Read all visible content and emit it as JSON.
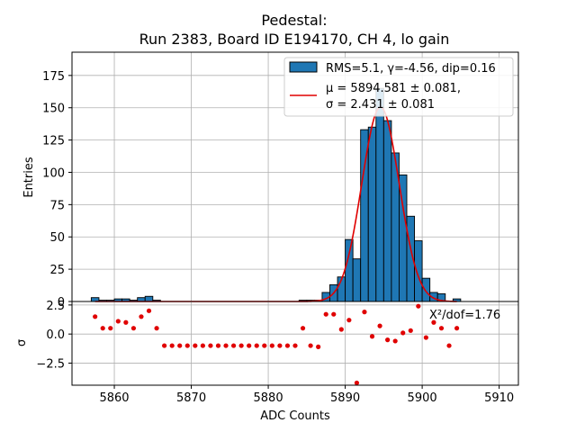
{
  "chart_data": {
    "type": "bar",
    "title_line1": "Pedestal:",
    "title_line2": "Run 2383, Board ID E194170, CH 4, lo gain",
    "xlabel": "ADC Counts",
    "xlim": [
      5854.5,
      5912.5
    ],
    "xticks": [
      5860,
      5870,
      5880,
      5890,
      5900,
      5910
    ],
    "grid": true,
    "legend": {
      "placement": "top-right",
      "hist_label": "RMS=5.1, γ=-4.56, dip=0.16",
      "fit_mu_label": "μ = 5894.581 ± 0.081,",
      "fit_sigma_label": "σ = 2.431 ± 0.081",
      "hist_color": "#1f77b4",
      "fit_color": "#e00000"
    },
    "top_panel": {
      "ylabel": "Entries",
      "ylim": [
        0,
        193
      ],
      "yticks": [
        0,
        25,
        50,
        75,
        100,
        125,
        150,
        175
      ],
      "bin_width": 1,
      "bin_left_edges": [
        5857,
        5858,
        5859,
        5860,
        5861,
        5862,
        5863,
        5864,
        5865,
        5866,
        5867,
        5868,
        5869,
        5870,
        5871,
        5872,
        5873,
        5874,
        5875,
        5876,
        5877,
        5878,
        5879,
        5880,
        5881,
        5882,
        5883,
        5884,
        5885,
        5886,
        5887,
        5888,
        5889,
        5890,
        5891,
        5892,
        5893,
        5894,
        5895,
        5896,
        5897,
        5898,
        5899,
        5900,
        5901,
        5902,
        5903,
        5904
      ],
      "counts": [
        3,
        1,
        1,
        2,
        2,
        1,
        3,
        4,
        1,
        0,
        0,
        0,
        0,
        0,
        0,
        0,
        0,
        0,
        0,
        0,
        0,
        0,
        0,
        0,
        0,
        0,
        0,
        1,
        1,
        1,
        7,
        13,
        19,
        48,
        33,
        133,
        135,
        165,
        140,
        115,
        98,
        66,
        47,
        18,
        7,
        6,
        0,
        2
      ],
      "fit": {
        "function": "gaussian",
        "mu": 5894.581,
        "sigma": 2.431,
        "amplitude": 150.5
      }
    },
    "residual_panel": {
      "ylabel": "σ",
      "ylim": [
        -4.4,
        2.8
      ],
      "yticks": [
        2.5,
        0.0,
        -2.5
      ],
      "ytick_labels": [
        "2.5",
        "0.0",
        "−2.5"
      ],
      "annotation": "X²/dof=1.76",
      "point_color": "#e00000",
      "points_x": [
        5857.5,
        5858.5,
        5859.5,
        5860.5,
        5861.5,
        5862.5,
        5863.5,
        5864.5,
        5865.5,
        5866.5,
        5867.5,
        5868.5,
        5869.5,
        5870.5,
        5871.5,
        5872.5,
        5873.5,
        5874.5,
        5875.5,
        5876.5,
        5877.5,
        5878.5,
        5879.5,
        5880.5,
        5881.5,
        5882.5,
        5883.5,
        5884.5,
        5885.5,
        5886.5,
        5887.5,
        5888.5,
        5889.5,
        5890.5,
        5891.5,
        5892.5,
        5893.5,
        5894.5,
        5895.5,
        5896.5,
        5897.5,
        5898.5,
        5899.5,
        5900.5,
        5901.5,
        5902.5,
        5903.5,
        5904.5
      ],
      "points_y": [
        1.5,
        0.5,
        0.5,
        1.1,
        1.0,
        0.5,
        1.5,
        2.0,
        0.5,
        -1.0,
        -1.0,
        -1.0,
        -1.0,
        -1.0,
        -1.0,
        -1.0,
        -1.0,
        -1.0,
        -1.0,
        -1.0,
        -1.0,
        -1.0,
        -1.0,
        -1.0,
        -1.0,
        -1.0,
        -1.0,
        0.5,
        -1.0,
        -1.1,
        1.7,
        1.7,
        0.4,
        1.2,
        -4.2,
        1.9,
        -0.2,
        0.7,
        -0.5,
        -0.6,
        0.1,
        0.3,
        2.4,
        -0.3,
        1.0,
        0.5,
        -1.0,
        0.5
      ]
    }
  }
}
